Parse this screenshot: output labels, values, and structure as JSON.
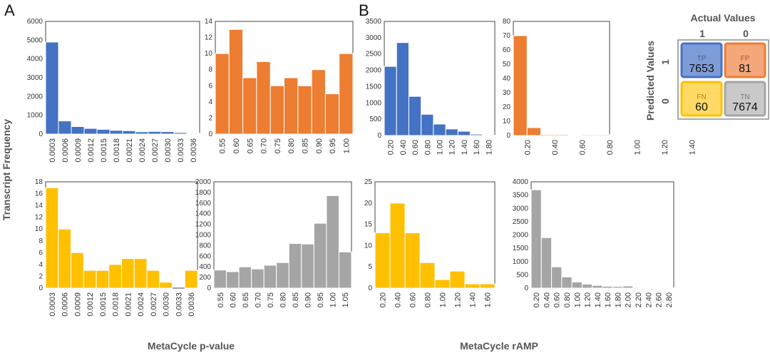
{
  "panel_labels": {
    "a": "A",
    "b": "B"
  },
  "axis_labels": {
    "y": "Transcript Frequency",
    "x_left": "MetaCycle p-value",
    "x_right": "MetaCycle rAMP"
  },
  "colors": {
    "blue": "#4472C4",
    "orange": "#ED7D31",
    "yellow": "#FFC000",
    "gray": "#A5A5A5"
  },
  "chart_data": [
    {
      "type": "bar",
      "panel": "A",
      "position": "top-left",
      "color": "blue",
      "categories": [
        "0.0003",
        "0.0006",
        "0.0009",
        "0.0012",
        "0.0015",
        "0.0018",
        "0.0021",
        "0.0024",
        "0.0027",
        "0.0030",
        "0.0033",
        "0.0036"
      ],
      "values": [
        4900,
        700,
        400,
        300,
        250,
        200,
        180,
        120,
        140,
        130,
        80,
        40
      ],
      "ylim": [
        0,
        6000
      ],
      "yticks": [
        0,
        1000,
        2000,
        3000,
        4000,
        5000,
        6000
      ]
    },
    {
      "type": "bar",
      "panel": "A",
      "position": "top-right",
      "color": "orange",
      "categories": [
        "0.55",
        "0.60",
        "0.65",
        "0.70",
        "0.75",
        "0.80",
        "0.85",
        "0.90",
        "0.95",
        "1.00"
      ],
      "values": [
        10,
        13,
        7,
        9,
        6,
        7,
        6,
        8,
        5,
        10
      ],
      "ylim": [
        0,
        14
      ],
      "yticks": [
        0,
        2,
        4,
        6,
        8,
        10,
        12,
        14
      ]
    },
    {
      "type": "bar",
      "panel": "A",
      "position": "bottom-left",
      "color": "yellow",
      "categories": [
        "0.0003",
        "0.0006",
        "0.0009",
        "0.0012",
        "0.0015",
        "0.0018",
        "0.0021",
        "0.0024",
        "0.0027",
        "0.0030",
        "0.0033",
        "0.0036"
      ],
      "values": [
        17,
        10,
        6,
        3,
        3,
        4,
        5,
        5,
        3,
        1,
        0,
        3
      ],
      "ylim": [
        0,
        18
      ],
      "yticks": [
        0,
        2,
        4,
        6,
        8,
        10,
        12,
        14,
        16,
        18
      ]
    },
    {
      "type": "bar",
      "panel": "A",
      "position": "bottom-right",
      "color": "gray",
      "categories": [
        "0.55",
        "0.60",
        "0.65",
        "0.70",
        "0.75",
        "0.80",
        "0.85",
        "0.90",
        "0.95",
        "1.00",
        "1.05"
      ],
      "values": [
        340,
        310,
        400,
        360,
        430,
        480,
        840,
        830,
        1220,
        1740,
        680
      ],
      "ylim": [
        0,
        2000
      ],
      "yticks": [
        0,
        200,
        400,
        600,
        800,
        1000,
        1200,
        1400,
        1600,
        1800,
        2000
      ]
    },
    {
      "type": "bar",
      "panel": "B",
      "position": "top-left",
      "color": "blue",
      "categories": [
        "0.20",
        "0.40",
        "0.60",
        "0.80",
        "1.00",
        "1.20",
        "1.40",
        "1.60",
        "1.80"
      ],
      "values": [
        2120,
        2850,
        1200,
        650,
        350,
        200,
        130,
        40,
        10
      ],
      "ylim": [
        0,
        3500
      ],
      "yticks": [
        0,
        500,
        1000,
        1500,
        2000,
        2500,
        3000,
        3500
      ]
    },
    {
      "type": "bar",
      "panel": "B",
      "position": "top-right",
      "color": "orange",
      "categories": [
        "0.20",
        "0.40",
        "0.60",
        "0.80",
        "1.00",
        "1.20",
        "1.40"
      ],
      "values": [
        70,
        5.5,
        0.7,
        0.7,
        0.3,
        0.6,
        0.6
      ],
      "bars_per_category": 2,
      "ylim": [
        0,
        80
      ],
      "yticks": [
        0,
        10,
        20,
        30,
        40,
        50,
        60,
        70,
        80
      ]
    },
    {
      "type": "bar",
      "panel": "B",
      "position": "bottom-left",
      "color": "yellow",
      "categories": [
        "0.20",
        "0.40",
        "0.60",
        "0.80",
        "1.00",
        "1.20",
        "1.40",
        "1.60"
      ],
      "values": [
        13,
        20,
        13,
        6,
        2,
        4,
        1,
        1
      ],
      "ylim": [
        0,
        25
      ],
      "yticks": [
        0,
        5,
        10,
        15,
        20,
        25
      ]
    },
    {
      "type": "bar",
      "panel": "B",
      "position": "bottom-right",
      "color": "gray",
      "categories": [
        "0.20",
        "0.40",
        "0.60",
        "0.80",
        "1.00",
        "1.20",
        "1.40",
        "1.60",
        "1.80",
        "2.00",
        "2.20",
        "2.40",
        "2.60",
        "2.80"
      ],
      "values": [
        3700,
        1900,
        800,
        420,
        230,
        150,
        100,
        70,
        60,
        80,
        30,
        20,
        15,
        10
      ],
      "ylim": [
        0,
        4000
      ],
      "yticks": [
        0,
        500,
        1000,
        1500,
        2000,
        2500,
        3000,
        3500,
        4000
      ]
    }
  ],
  "confusion_matrix": {
    "actual_label": "Actual Values",
    "predicted_label": "Predicted Values",
    "col_labels": [
      "1",
      "0"
    ],
    "row_labels": [
      "1",
      "0"
    ],
    "cells": [
      {
        "code": "TP",
        "value": "7653",
        "fill": "#7E9DD8",
        "border": "#4472C4",
        "codecolor": "#3A5FA5"
      },
      {
        "code": "FP",
        "value": "81",
        "fill": "#F4A77B",
        "border": "#ED7D31",
        "codecolor": "#C0561A"
      },
      {
        "code": "FN",
        "value": "60",
        "fill": "#FFD966",
        "border": "#FFC000",
        "codecolor": "#B58600"
      },
      {
        "code": "TN",
        "value": "7674",
        "fill": "#C9C9C9",
        "border": "#A5A5A5",
        "codecolor": "#7A7A7A"
      }
    ]
  }
}
